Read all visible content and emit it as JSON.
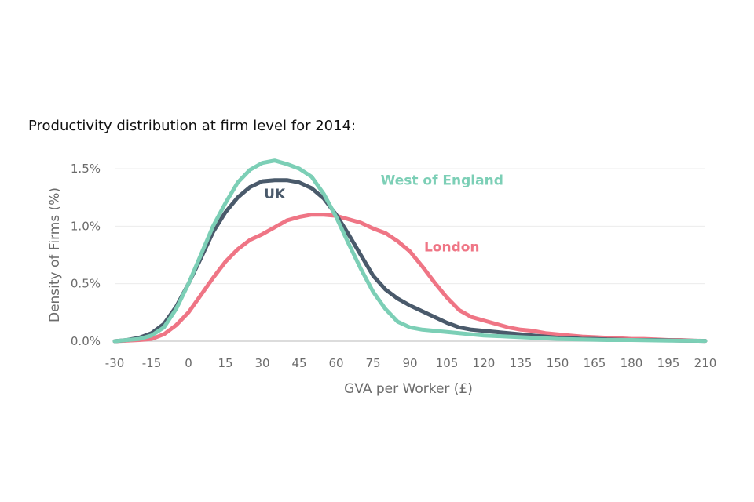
{
  "chart_data": {
    "type": "line",
    "title": "Productivity distribution at firm level for 2014:",
    "xlabel": "GVA per Worker (£)",
    "ylabel": "Density of Firms (%)",
    "xlim": [
      -30,
      210
    ],
    "ylim": [
      0,
      1.6
    ],
    "x_ticks": [
      -30,
      -15,
      0,
      15,
      30,
      45,
      60,
      75,
      90,
      105,
      120,
      135,
      150,
      165,
      180,
      195,
      210
    ],
    "x_tick_labels": [
      "-30",
      "-15",
      "0",
      "15",
      "30",
      "45",
      "60",
      "75",
      "90",
      "105",
      "120",
      "135",
      "150",
      "165",
      "180",
      "195",
      "210"
    ],
    "y_ticks": [
      0,
      0.5,
      1.0,
      1.5
    ],
    "y_tick_labels": [
      "0.0%",
      "0.5%",
      "1.0%",
      "1.5%"
    ],
    "grid": true,
    "series": [
      {
        "name": "UK",
        "color": "#4a5a6b",
        "points": [
          [
            -30,
            0.0
          ],
          [
            -25,
            0.01
          ],
          [
            -20,
            0.03
          ],
          [
            -15,
            0.07
          ],
          [
            -10,
            0.15
          ],
          [
            -5,
            0.3
          ],
          [
            0,
            0.5
          ],
          [
            5,
            0.72
          ],
          [
            10,
            0.95
          ],
          [
            15,
            1.12
          ],
          [
            20,
            1.25
          ],
          [
            25,
            1.34
          ],
          [
            30,
            1.39
          ],
          [
            35,
            1.4
          ],
          [
            40,
            1.4
          ],
          [
            45,
            1.38
          ],
          [
            50,
            1.33
          ],
          [
            55,
            1.24
          ],
          [
            60,
            1.1
          ],
          [
            65,
            0.93
          ],
          [
            70,
            0.75
          ],
          [
            75,
            0.57
          ],
          [
            80,
            0.45
          ],
          [
            85,
            0.37
          ],
          [
            90,
            0.31
          ],
          [
            95,
            0.26
          ],
          [
            100,
            0.21
          ],
          [
            105,
            0.16
          ],
          [
            110,
            0.12
          ],
          [
            115,
            0.1
          ],
          [
            120,
            0.09
          ],
          [
            125,
            0.08
          ],
          [
            130,
            0.07
          ],
          [
            135,
            0.06
          ],
          [
            140,
            0.05
          ],
          [
            145,
            0.04
          ],
          [
            150,
            0.03
          ],
          [
            155,
            0.03
          ],
          [
            160,
            0.02
          ],
          [
            165,
            0.02
          ],
          [
            170,
            0.015
          ],
          [
            180,
            0.01
          ],
          [
            190,
            0.01
          ],
          [
            200,
            0.005
          ],
          [
            210,
            0.003
          ]
        ]
      },
      {
        "name": "West of England",
        "color": "#7ccfb6",
        "points": [
          [
            -30,
            0.0
          ],
          [
            -25,
            0.01
          ],
          [
            -20,
            0.02
          ],
          [
            -15,
            0.05
          ],
          [
            -10,
            0.12
          ],
          [
            -5,
            0.28
          ],
          [
            0,
            0.5
          ],
          [
            5,
            0.75
          ],
          [
            10,
            1.0
          ],
          [
            15,
            1.2
          ],
          [
            20,
            1.38
          ],
          [
            25,
            1.49
          ],
          [
            30,
            1.55
          ],
          [
            35,
            1.57
          ],
          [
            40,
            1.54
          ],
          [
            45,
            1.5
          ],
          [
            50,
            1.43
          ],
          [
            55,
            1.28
          ],
          [
            60,
            1.08
          ],
          [
            65,
            0.85
          ],
          [
            70,
            0.63
          ],
          [
            75,
            0.43
          ],
          [
            80,
            0.28
          ],
          [
            85,
            0.17
          ],
          [
            90,
            0.12
          ],
          [
            95,
            0.1
          ],
          [
            100,
            0.09
          ],
          [
            105,
            0.08
          ],
          [
            110,
            0.07
          ],
          [
            115,
            0.06
          ],
          [
            120,
            0.05
          ],
          [
            130,
            0.04
          ],
          [
            140,
            0.03
          ],
          [
            150,
            0.02
          ],
          [
            160,
            0.015
          ],
          [
            170,
            0.01
          ],
          [
            180,
            0.01
          ],
          [
            195,
            0.005
          ],
          [
            210,
            0.003
          ]
        ]
      },
      {
        "name": "London",
        "color": "#ef7585",
        "points": [
          [
            -30,
            0.0
          ],
          [
            -25,
            0.005
          ],
          [
            -20,
            0.01
          ],
          [
            -15,
            0.02
          ],
          [
            -10,
            0.06
          ],
          [
            -5,
            0.14
          ],
          [
            0,
            0.25
          ],
          [
            5,
            0.4
          ],
          [
            10,
            0.55
          ],
          [
            15,
            0.69
          ],
          [
            20,
            0.8
          ],
          [
            25,
            0.88
          ],
          [
            30,
            0.93
          ],
          [
            35,
            0.99
          ],
          [
            40,
            1.05
          ],
          [
            45,
            1.08
          ],
          [
            50,
            1.1
          ],
          [
            55,
            1.1
          ],
          [
            60,
            1.09
          ],
          [
            65,
            1.06
          ],
          [
            70,
            1.03
          ],
          [
            75,
            0.98
          ],
          [
            80,
            0.94
          ],
          [
            85,
            0.87
          ],
          [
            90,
            0.78
          ],
          [
            95,
            0.65
          ],
          [
            100,
            0.51
          ],
          [
            105,
            0.38
          ],
          [
            110,
            0.27
          ],
          [
            115,
            0.21
          ],
          [
            120,
            0.18
          ],
          [
            125,
            0.15
          ],
          [
            130,
            0.12
          ],
          [
            135,
            0.1
          ],
          [
            140,
            0.09
          ],
          [
            145,
            0.07
          ],
          [
            150,
            0.06
          ],
          [
            155,
            0.05
          ],
          [
            160,
            0.04
          ],
          [
            165,
            0.035
          ],
          [
            170,
            0.03
          ],
          [
            175,
            0.025
          ],
          [
            180,
            0.02
          ],
          [
            185,
            0.02
          ],
          [
            190,
            0.015
          ],
          [
            195,
            0.01
          ],
          [
            200,
            0.01
          ],
          [
            205,
            0.005
          ],
          [
            210,
            0.003
          ]
        ]
      }
    ]
  }
}
